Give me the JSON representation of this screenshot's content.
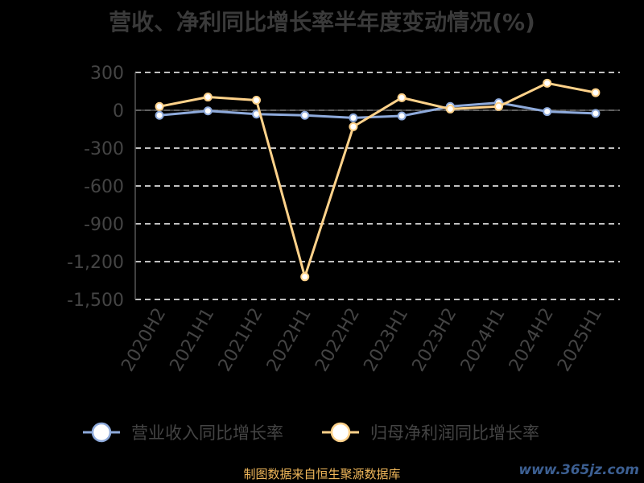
{
  "title": "营收、净利同比增长率半年度变动情况(%)",
  "footer": "制图数据来自恒生聚源数据库",
  "watermark": "www.365jz.com",
  "colors": {
    "revenue": "#8eaadb",
    "profit": "#ffd28a",
    "grid": "#ffffff",
    "tick": "#444444"
  },
  "chart_data": {
    "type": "line",
    "title": "营收、净利同比增长率半年度变动情况(%)",
    "categories": [
      "2020H2",
      "2021H1",
      "2021H2",
      "2022H1",
      "2022H2",
      "2023H1",
      "2023H2",
      "2024H1",
      "2024H2",
      "2025H1"
    ],
    "ylim": [
      -1500,
      300
    ],
    "yticks": [
      300,
      0,
      -300,
      -600,
      -900,
      -1200,
      -1500
    ],
    "ytick_labels": [
      "300",
      "0",
      "-300",
      "-600",
      "-900",
      "-1,200",
      "-1,500"
    ],
    "grid": true,
    "legend_position": "bottom",
    "series": [
      {
        "name": "营业收入同比增长率",
        "color": "#8eaadb",
        "values": [
          -40,
          -5,
          -30,
          -40,
          -60,
          -45,
          30,
          60,
          -10,
          -25
        ]
      },
      {
        "name": "归母净利润同比增长率",
        "color": "#ffd28a",
        "values": [
          30,
          105,
          80,
          -1320,
          -130,
          100,
          10,
          30,
          215,
          140
        ]
      }
    ]
  }
}
